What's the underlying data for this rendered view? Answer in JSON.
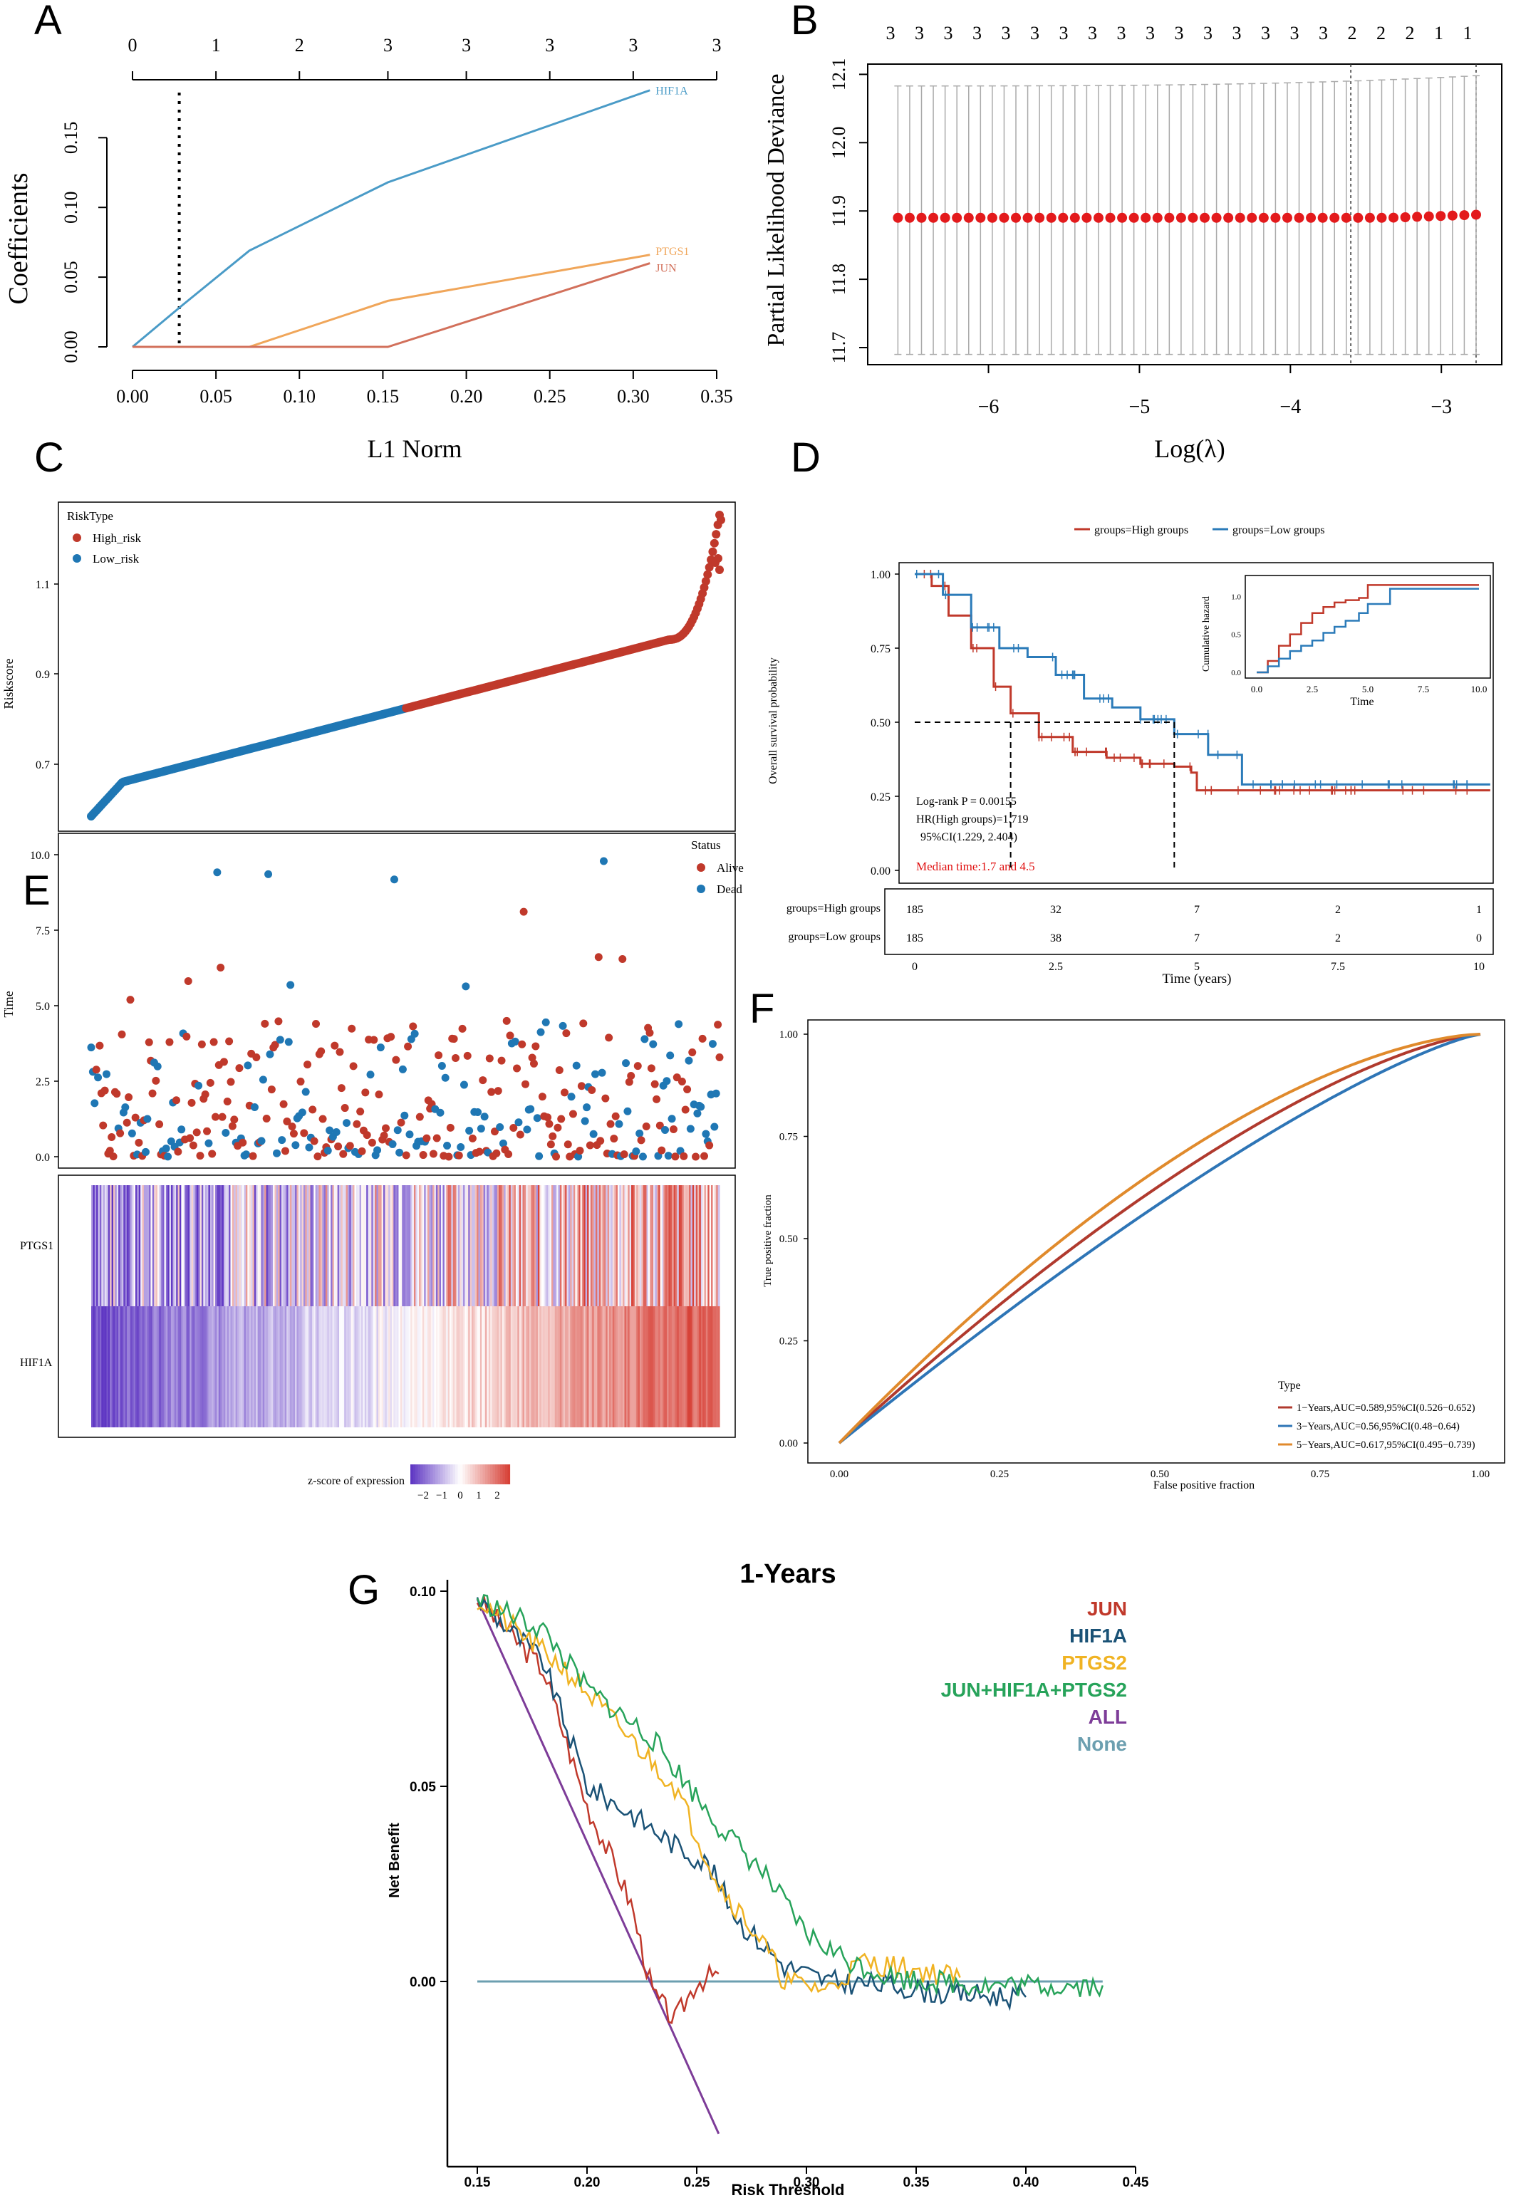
{
  "chart_data": [
    {
      "panel": "A",
      "type": "line",
      "xlabel": "L1 Norm",
      "ylabel": "Coefficients",
      "xlim": [
        0,
        0.35
      ],
      "ylim": [
        0,
        0.19
      ],
      "x_ticks": [
        "0.00",
        "0.05",
        "0.10",
        "0.15",
        "0.20",
        "0.25",
        "0.30",
        "0.35"
      ],
      "y_ticks": [
        "0.00",
        "0.05",
        "0.10",
        "0.15"
      ],
      "top_ticks": [
        "0",
        "1",
        "2",
        "3",
        "3",
        "3",
        "3",
        "3"
      ],
      "vline_x": 0.028,
      "series": [
        {
          "name": "HIF1A",
          "color": "#4a9bc7",
          "x": [
            0,
            0.03,
            0.07,
            0.153,
            0.31
          ],
          "y": [
            0,
            0.03,
            0.069,
            0.118,
            0.184
          ]
        },
        {
          "name": "PTGS1",
          "color": "#f0a65a",
          "x": [
            0,
            0.07,
            0.153,
            0.31
          ],
          "y": [
            0,
            0,
            0.033,
            0.066
          ]
        },
        {
          "name": "JUN",
          "color": "#d2705b",
          "x": [
            0,
            0.153,
            0.31
          ],
          "y": [
            0,
            0,
            0.06
          ]
        }
      ]
    },
    {
      "panel": "B",
      "type": "scatter",
      "xlabel": "Log(λ)",
      "ylabel": "Partial Likelihood Deviance",
      "xlim": [
        -6.8,
        -2.6
      ],
      "ylim": [
        11.675,
        12.115
      ],
      "x_ticks": [
        "−6",
        "−5",
        "−4",
        "−3"
      ],
      "y_ticks": [
        "11.7",
        "11.8",
        "11.9",
        "12.0",
        "12.1"
      ],
      "top_ticks": [
        "3",
        "3",
        "3",
        "3",
        "3",
        "3",
        "3",
        "3",
        "3",
        "3",
        "3",
        "3",
        "3",
        "3",
        "3",
        "3",
        "2",
        "2",
        "2",
        "1",
        "1"
      ],
      "vlines": [
        -3.6,
        -2.77
      ],
      "x_start": -6.6,
      "x_end": -2.77,
      "n_points": 50,
      "y": 11.89,
      "err_low": 11.69,
      "err_high_start": 12.083,
      "err_high_end": 12.098
    },
    {
      "panel": "C",
      "type": "scatter",
      "ylabel": "Riskscore",
      "y_ticks": [
        "0.7",
        "0.9",
        "1.1"
      ],
      "legend_title": "RiskType",
      "legend": [
        {
          "label": "High_risk",
          "color": "#c0392b"
        },
        {
          "label": "Low_risk",
          "color": "#1f77b4"
        }
      ],
      "n": 370,
      "split_index": 185
    },
    {
      "panel": "D",
      "type": "line",
      "xlabel": "Time (years)",
      "ylabel": "Overall survival probability",
      "x_ticks": [
        "0",
        "2.5",
        "5",
        "7.5",
        "10"
      ],
      "y_ticks": [
        "0.00",
        "0.25",
        "0.50",
        "0.75",
        "1.00"
      ],
      "legend": [
        {
          "label": "groups=High groups",
          "color": "#c0392b"
        },
        {
          "label": "groups=Low groups",
          "color": "#2b7bb9"
        }
      ],
      "series": [
        {
          "name": "groups=High groups",
          "color": "#c0392b",
          "x": [
            0,
            0.3,
            0.6,
            1.0,
            1.4,
            1.7,
            2.2,
            2.8,
            3.4,
            4.0,
            4.6,
            4.9,
            5.0,
            10.2
          ],
          "y": [
            1,
            0.96,
            0.86,
            0.75,
            0.62,
            0.53,
            0.45,
            0.4,
            0.38,
            0.36,
            0.35,
            0.33,
            0.27,
            0.27
          ]
        },
        {
          "name": "groups=Low groups",
          "color": "#2b7bb9",
          "x": [
            0,
            0.5,
            1.0,
            1.5,
            2.0,
            2.5,
            3.0,
            3.5,
            4.0,
            4.6,
            5.2,
            5.8,
            10.2
          ],
          "y": [
            1,
            0.93,
            0.82,
            0.75,
            0.72,
            0.66,
            0.58,
            0.55,
            0.51,
            0.46,
            0.39,
            0.29,
            0.29
          ]
        }
      ],
      "annotations": [
        "Log-rank P = 0.00155",
        "HR(High groups)=1.719",
        "95%CI(1.229, 2.404)"
      ],
      "median_text": "Median time:1.7 and 4.5",
      "risk_table": {
        "rows": [
          {
            "label": "groups=High groups",
            "values": [
              "185",
              "32",
              "7",
              "2",
              "1"
            ]
          },
          {
            "label": "groups=Low groups",
            "values": [
              "185",
              "38",
              "7",
              "2",
              "0"
            ]
          }
        ]
      },
      "inset": {
        "xlabel": "Time",
        "ylabel": "Cumulative hazard",
        "x_ticks": [
          "0.0",
          "2.5",
          "5.0",
          "7.5",
          "10.0"
        ],
        "y_ticks": [
          "0.0",
          "0.5",
          "1.0"
        ]
      }
    },
    {
      "panel": "E",
      "type": "scatter",
      "ylabel": "Time",
      "y_ticks": [
        "0.0",
        "2.5",
        "5.0",
        "7.5",
        "10.0"
      ],
      "legend_title": "Status",
      "legend": [
        {
          "label": "Alive",
          "color": "#c0392b"
        },
        {
          "label": "Dead",
          "color": "#1f77b4"
        }
      ],
      "heatmap_rows": [
        "PTGS1",
        "HIF1A"
      ],
      "colorbar_label": "z-score of expression",
      "colorbar_ticks": [
        "−2",
        "−1",
        "0",
        "1",
        "2"
      ]
    },
    {
      "panel": "F",
      "type": "line",
      "xlabel": "False positive fraction",
      "ylabel": "True positive fraction",
      "x_ticks": [
        "0.00",
        "0.25",
        "0.50",
        "0.75",
        "1.00"
      ],
      "y_ticks": [
        "0.00",
        "0.25",
        "0.50",
        "0.75",
        "1.00"
      ],
      "legend_title": "Type",
      "series": [
        {
          "name": "1−Years,AUC=0.589,95%CI(0.526−0.652)",
          "color": "#b03a2e",
          "auc": 0.589
        },
        {
          "name": "3−Years,AUC=0.56,95%CI(0.48−0.64)",
          "color": "#2e75b6",
          "auc": 0.56
        },
        {
          "name": "5−Years,AUC=0.617,95%CI(0.495−0.739)",
          "color": "#e08a2c",
          "auc": 0.617
        }
      ]
    },
    {
      "panel": "G",
      "type": "line",
      "title": "1-Years",
      "xlabel": "Risk Threshold",
      "ylabel": "Net Benefit",
      "xlim": [
        0.13,
        0.45
      ],
      "ylim": [
        -0.045,
        0.105
      ],
      "x_ticks": [
        "0.15",
        "0.20",
        "0.25",
        "0.30",
        "0.35",
        "0.40",
        "0.45"
      ],
      "y_ticks": [
        "0.10",
        "0.05",
        "0.00"
      ],
      "series": [
        {
          "name": "JUN",
          "color": "#c0392b"
        },
        {
          "name": "HIF1A",
          "color": "#1a5276"
        },
        {
          "name": "PTGS2",
          "color": "#f0b323"
        },
        {
          "name": "JUN+HIF1A+PTGS2",
          "color": "#27a35a"
        },
        {
          "name": "ALL",
          "color": "#7d3c98"
        },
        {
          "name": "None",
          "color": "#6c9fb0"
        }
      ]
    }
  ],
  "panel_letters": [
    "A",
    "B",
    "C",
    "D",
    "E",
    "F",
    "G"
  ]
}
